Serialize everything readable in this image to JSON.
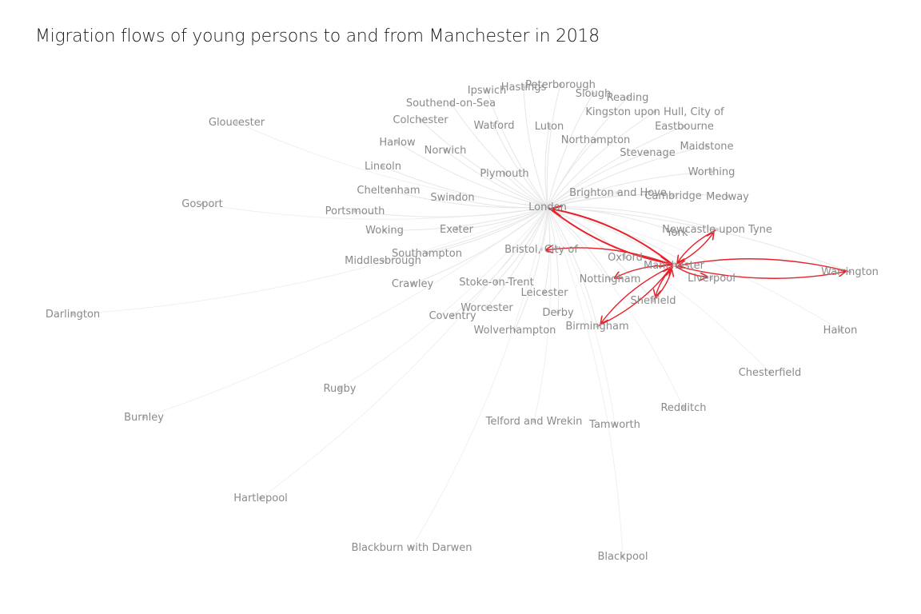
{
  "title": "Migration flows of young persons to and from Manchester in 2018",
  "colors": {
    "highlight": "#e8202a",
    "edge": "#e6e6e6",
    "label": "#8a8a8a"
  },
  "nodes": [
    {
      "id": "ipswich",
      "label": "Ipswich"
    },
    {
      "id": "hastings",
      "label": "Hastings"
    },
    {
      "id": "peterborough",
      "label": "Peterborough"
    },
    {
      "id": "slough",
      "label": "Slough"
    },
    {
      "id": "reading",
      "label": "Reading"
    },
    {
      "id": "southend",
      "label": "Southend-on-Sea"
    },
    {
      "id": "kingston",
      "label": "Kingston upon Hull, City of"
    },
    {
      "id": "gloucester",
      "label": "Gloucester"
    },
    {
      "id": "colchester",
      "label": "Colchester"
    },
    {
      "id": "watford",
      "label": "Watford"
    },
    {
      "id": "luton",
      "label": "Luton"
    },
    {
      "id": "eastbourne",
      "label": "Eastbourne"
    },
    {
      "id": "harlow",
      "label": "Harlow"
    },
    {
      "id": "norwich",
      "label": "Norwich"
    },
    {
      "id": "northampton",
      "label": "Northampton"
    },
    {
      "id": "stevenage",
      "label": "Stevenage"
    },
    {
      "id": "maidstone",
      "label": "Maidstone"
    },
    {
      "id": "lincoln",
      "label": "Lincoln"
    },
    {
      "id": "plymouth",
      "label": "Plymouth"
    },
    {
      "id": "worthing",
      "label": "Worthing"
    },
    {
      "id": "cheltenham",
      "label": "Cheltenham"
    },
    {
      "id": "swindon",
      "label": "Swindon"
    },
    {
      "id": "brighton",
      "label": "Brighton and Hove"
    },
    {
      "id": "cambridge",
      "label": "Cambridge"
    },
    {
      "id": "medway",
      "label": "Medway"
    },
    {
      "id": "gosport",
      "label": "Gosport"
    },
    {
      "id": "london",
      "label": "London"
    },
    {
      "id": "portsmouth",
      "label": "Portsmouth"
    },
    {
      "id": "woking",
      "label": "Woking"
    },
    {
      "id": "exeter",
      "label": "Exeter"
    },
    {
      "id": "york",
      "label": "York"
    },
    {
      "id": "newcastle",
      "label": "Newcastle upon Tyne"
    },
    {
      "id": "bristol",
      "label": "Bristol, City of"
    },
    {
      "id": "southampton",
      "label": "Southampton"
    },
    {
      "id": "oxford",
      "label": "Oxford"
    },
    {
      "id": "middlesbrough",
      "label": "Middlesbrough"
    },
    {
      "id": "manchester",
      "label": "Manchester"
    },
    {
      "id": "warrington",
      "label": "Warrington"
    },
    {
      "id": "liverpool",
      "label": "Liverpool"
    },
    {
      "id": "nottingham",
      "label": "Nottingham"
    },
    {
      "id": "crawley",
      "label": "Crawley"
    },
    {
      "id": "stoke",
      "label": "Stoke-on-Trent"
    },
    {
      "id": "leicester",
      "label": "Leicester"
    },
    {
      "id": "sheffield",
      "label": "Sheffield"
    },
    {
      "id": "worcester",
      "label": "Worcester"
    },
    {
      "id": "derby",
      "label": "Derby"
    },
    {
      "id": "darlington",
      "label": "Darlington"
    },
    {
      "id": "coventry",
      "label": "Coventry"
    },
    {
      "id": "birmingham",
      "label": "Birmingham"
    },
    {
      "id": "halton",
      "label": "Halton"
    },
    {
      "id": "wolverhampton",
      "label": "Wolverhampton"
    },
    {
      "id": "chesterfield",
      "label": "Chesterfield"
    },
    {
      "id": "rugby",
      "label": "Rugby"
    },
    {
      "id": "redditch",
      "label": "Redditch"
    },
    {
      "id": "burnley",
      "label": "Burnley"
    },
    {
      "id": "telford",
      "label": "Telford and Wrekin"
    },
    {
      "id": "tamworth",
      "label": "Tamworth"
    },
    {
      "id": "hartlepool",
      "label": "Hartlepool"
    },
    {
      "id": "blackburn",
      "label": "Blackburn with Darwen"
    },
    {
      "id": "blackpool",
      "label": "Blackpool"
    }
  ],
  "highlighted_flows": [
    {
      "from": "manchester",
      "to": "london"
    },
    {
      "from": "london",
      "to": "manchester"
    },
    {
      "from": "manchester",
      "to": "warrington"
    },
    {
      "from": "warrington",
      "to": "manchester"
    },
    {
      "from": "manchester",
      "to": "birmingham"
    },
    {
      "from": "birmingham",
      "to": "manchester"
    },
    {
      "from": "manchester",
      "to": "newcastle"
    },
    {
      "from": "newcastle",
      "to": "manchester"
    },
    {
      "from": "manchester",
      "to": "bristol"
    },
    {
      "from": "manchester",
      "to": "sheffield"
    },
    {
      "from": "sheffield",
      "to": "manchester"
    },
    {
      "from": "manchester",
      "to": "liverpool"
    },
    {
      "from": "manchester",
      "to": "nottingham"
    }
  ]
}
